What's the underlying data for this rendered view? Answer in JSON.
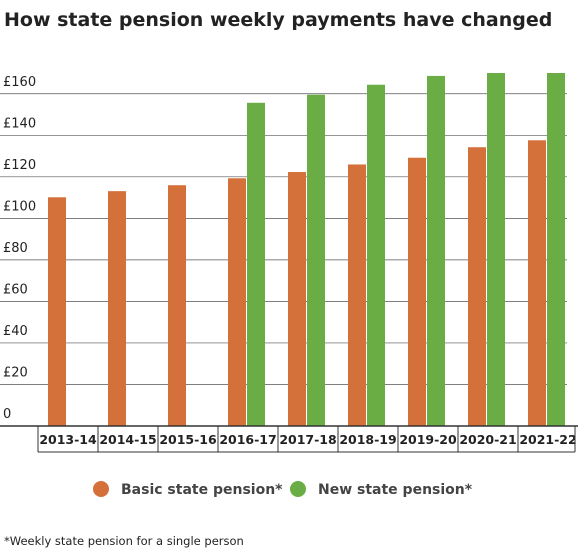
{
  "chart_data": {
    "type": "bar",
    "title": "How state pension weekly payments have changed",
    "categories": [
      "2013-14",
      "2014-15",
      "2015-16",
      "2016-17",
      "2017-18",
      "2018-19",
      "2019-20",
      "2020-21",
      "2021-22"
    ],
    "series": [
      {
        "name": "Basic state pension*",
        "color": "#d4703a",
        "values": [
          110.15,
          113.1,
          115.95,
          119.3,
          122.3,
          125.95,
          129.2,
          134.25,
          137.6
        ]
      },
      {
        "name": "New state pension*",
        "color": "#6aad45",
        "values": [
          null,
          null,
          null,
          155.65,
          159.55,
          164.35,
          168.6,
          170,
          170
        ]
      }
    ],
    "ylim": [
      0,
      170
    ],
    "yticks": [
      0,
      {
        "value": 20,
        "label": "£20"
      },
      {
        "value": 40,
        "label": "£40"
      },
      {
        "value": 60,
        "label": "£60"
      },
      {
        "value": 80,
        "label": "£80"
      },
      {
        "value": 100,
        "label": "£100"
      },
      {
        "value": 120,
        "label": "£120"
      },
      {
        "value": 140,
        "label": "£140"
      },
      {
        "value": 160,
        "label": "£160"
      }
    ],
    "grid": true,
    "note": "*Weekly state pension for a single person"
  }
}
